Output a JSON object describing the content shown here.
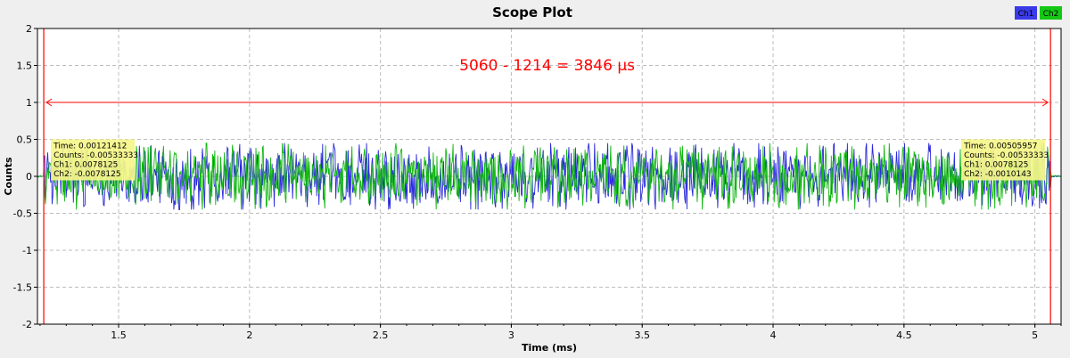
{
  "chart_data": {
    "type": "line",
    "title": "Scope Plot",
    "xlabel": "Time (ms)",
    "ylabel": "Counts",
    "xlim": [
      1.19,
      5.1
    ],
    "ylim": [
      -2,
      2
    ],
    "xticks": [
      "1.5",
      "2",
      "2.5",
      "3",
      "3.5",
      "4",
      "4.5",
      "5"
    ],
    "yticks": [
      "2",
      "1.5",
      "1",
      "0.5",
      "0",
      "-0.5",
      "-1",
      "-1.5",
      "-2"
    ],
    "grid": true,
    "legend_placement": "top-right",
    "series": [
      {
        "name": "Ch1",
        "color": "#2a2adc",
        "amplitude": 0.45,
        "signal_start": 1.214,
        "signal_end": 5.06
      },
      {
        "name": "Ch2",
        "color": "#12b812",
        "amplitude": 0.45,
        "signal_start": 1.214,
        "signal_end": 5.06
      }
    ],
    "markers": [
      {
        "time_ms": 1.21412,
        "lines": [
          "Time: 0.00121412",
          "Counts: -0.00533333",
          "Ch1: 0.0078125",
          "Ch2: -0.0078125"
        ]
      },
      {
        "time_ms": 5.05957,
        "lines": [
          "Time: 0.00505957",
          "Counts: -0.00533333",
          "Ch1: 0.0078125",
          "Ch2: -0.0010143"
        ]
      }
    ],
    "delta": {
      "text": "5060 - 1214 = 3846 µs",
      "y": 1.0
    },
    "colors": {
      "marker": "#ff0000",
      "tooltip_bg": "#f5f58a",
      "plot_bg": "#ffffff",
      "grid": "#bdbdbd"
    }
  }
}
